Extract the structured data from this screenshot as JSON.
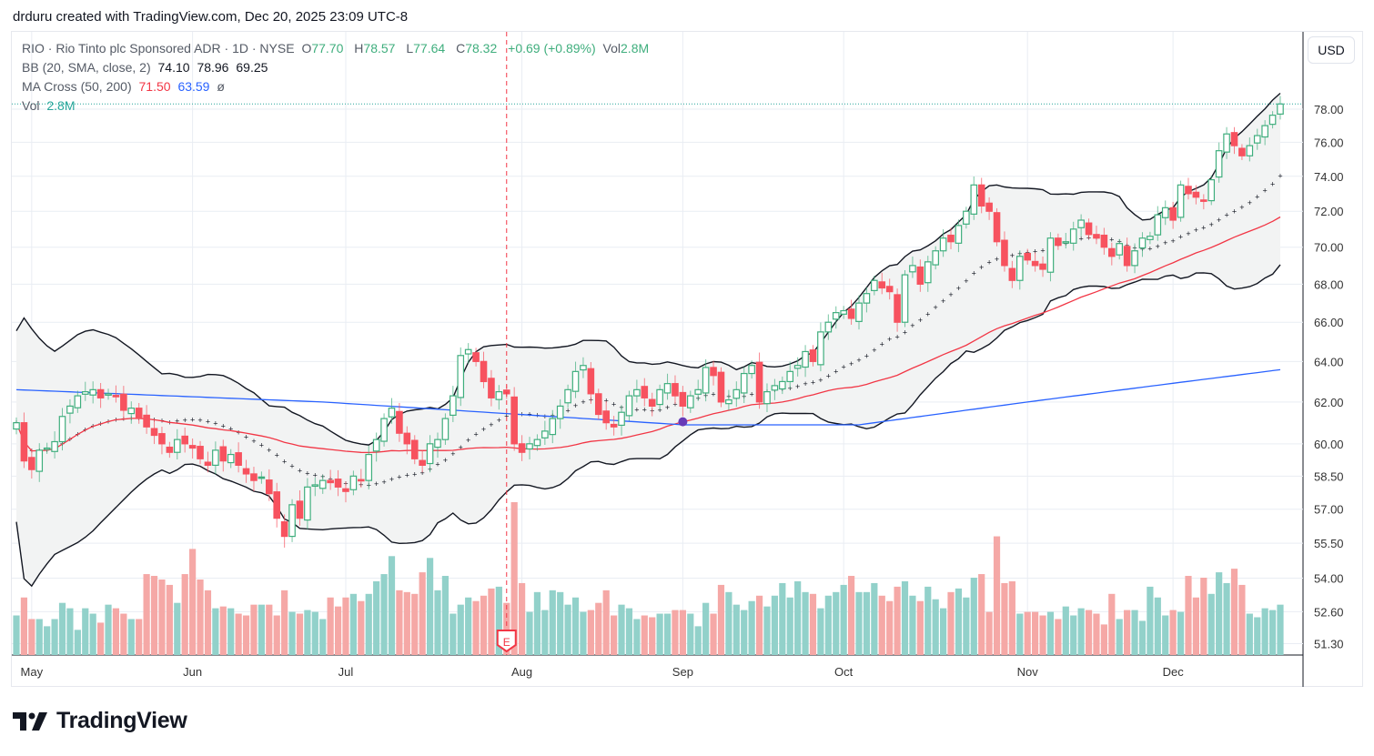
{
  "credit": "drduru created with TradingView.com, Dec 20, 2025 23:09 UTC-8",
  "legend": {
    "symbol": "RIO · Rio Tinto plc Sponsored ADR · 1D · NYSE",
    "o_label": "O",
    "o": "77.70",
    "h_label": "H",
    "h": "78.57",
    "l_label": "L",
    "l": "77.64",
    "c_label": "C",
    "c": "78.32",
    "change": "+0.69 (+0.89%)",
    "vol_label": "Vol",
    "vol": "2.8M",
    "bb_label": "BB (20, SMA, close, 2)",
    "bb_mid": "74.10",
    "bb_up": "78.96",
    "bb_low": "69.25",
    "ma_label": "MA Cross (50, 200)",
    "ma50": "71.50",
    "ma200": "63.59",
    "ma_sym": "ø",
    "vol2_label": "Vol",
    "vol2": "2.8M"
  },
  "currency": "USD",
  "brand": "TradingView",
  "colors": {
    "up": "#3fae7d",
    "down": "#f7525f",
    "vol_up": "#92d1ca",
    "vol_down": "#f5a8a6",
    "ma50": "#f23645",
    "ma200": "#2962ff",
    "cross": "#673ab7"
  },
  "chart_data": {
    "type": "candlestick",
    "title": "RIO · Rio Tinto plc Sponsored ADR · 1D · NYSE",
    "yscale": "log",
    "ylim": [
      50.8,
      79.5
    ],
    "y_ticks": [
      "78.00",
      "76.00",
      "74.00",
      "72.00",
      "70.00",
      "68.00",
      "66.00",
      "64.00",
      "62.00",
      "60.00",
      "58.50",
      "57.00",
      "55.50",
      "54.00",
      "52.60",
      "51.30"
    ],
    "x_ticks": [
      {
        "label": "May",
        "bar": 2
      },
      {
        "label": "Jun",
        "bar": 23
      },
      {
        "label": "Jul",
        "bar": 43
      },
      {
        "label": "Aug",
        "bar": 66
      },
      {
        "label": "Sep",
        "bar": 87
      },
      {
        "label": "Oct",
        "bar": 108
      },
      {
        "label": "Nov",
        "bar": 132
      },
      {
        "label": "Dec",
        "bar": 151
      }
    ],
    "close": [
      61.0,
      59.2,
      58.8,
      59.7,
      59.8,
      60.1,
      61.3,
      61.8,
      62.3,
      62.5,
      62.6,
      62.2,
      62.4,
      62.3,
      61.6,
      61.7,
      61.2,
      60.8,
      60.4,
      60.0,
      59.6,
      60.2,
      60.0,
      59.8,
      59.3,
      59.0,
      59.7,
      59.2,
      59.5,
      59.0,
      58.6,
      58.3,
      58.4,
      57.7,
      56.6,
      55.8,
      57.2,
      56.6,
      58.0,
      58.1,
      58.3,
      58.2,
      58.0,
      57.8,
      58.5,
      58.3,
      59.5,
      60.2,
      61.2,
      61.7,
      60.5,
      60.0,
      59.3,
      59.0,
      60.0,
      60.2,
      61.2,
      62.3,
      64.3,
      64.6,
      64.0,
      63.0,
      62.2,
      62.5,
      62.4,
      60.0,
      59.6,
      60.0,
      60.2,
      60.6,
      61.2,
      61.8,
      62.6,
      63.5,
      63.8,
      62.4,
      61.4,
      61.0,
      60.8,
      61.5,
      62.3,
      62.6,
      62.2,
      61.8,
      62.6,
      62.9,
      62.3,
      61.8,
      62.3,
      62.6,
      63.7,
      63.3,
      62.0,
      62.1,
      62.6,
      63.4,
      63.8,
      62.0,
      62.5,
      62.8,
      63.0,
      63.5,
      63.8,
      64.5,
      64.0,
      65.5,
      66.0,
      66.5,
      66.6,
      66.2,
      67.0,
      67.5,
      68.2,
      67.8,
      67.6,
      66.0,
      68.5,
      69.0,
      68.0,
      69.2,
      69.8,
      70.5,
      70.3,
      71.2,
      72.0,
      73.5,
      72.3,
      72.0,
      70.3,
      69.0,
      68.2,
      69.5,
      69.3,
      69.0,
      68.8,
      70.5,
      70.1,
      70.3,
      71.0,
      71.5,
      70.7,
      70.5,
      70.0,
      69.5,
      70.2,
      69.0,
      69.8,
      70.5,
      70.6,
      71.8,
      72.2,
      71.5,
      73.5,
      73.0,
      72.8,
      72.6,
      73.8,
      75.5,
      76.5,
      75.8,
      75.2,
      75.8,
      76.4,
      77.0,
      77.63,
      78.32
    ],
    "volume_millions": [
      2.2,
      3.2,
      2.0,
      2.0,
      1.6,
      2.0,
      2.9,
      2.6,
      1.4,
      2.6,
      2.3,
      1.8,
      2.8,
      2.6,
      2.3,
      2.0,
      2.0,
      4.5,
      4.4,
      4.2,
      3.9,
      2.9,
      4.5,
      5.9,
      4.2,
      3.6,
      2.6,
      2.7,
      2.6,
      2.3,
      2.2,
      2.8,
      2.8,
      2.8,
      2.2,
      3.6,
      2.4,
      2.3,
      2.5,
      2.4,
      2.0,
      3.2,
      2.7,
      3.2,
      3.4,
      3.0,
      3.4,
      4.1,
      4.5,
      5.5,
      3.6,
      3.5,
      3.4,
      4.6,
      5.4,
      3.6,
      4.4,
      2.3,
      2.8,
      3.2,
      3.0,
      3.3,
      3.7,
      3.8,
      2.9,
      8.5,
      4.0,
      2.4,
      3.5,
      2.5,
      3.6,
      3.5,
      2.8,
      3.2,
      2.4,
      2.5,
      2.9,
      3.6,
      2.2,
      2.8,
      2.6,
      2.0,
      2.2,
      2.1,
      2.3,
      2.3,
      2.5,
      2.5,
      2.3,
      1.6,
      2.9,
      2.3,
      3.9,
      3.5,
      2.8,
      2.5,
      3.0,
      3.3,
      2.7,
      3.3,
      4.0,
      3.2,
      4.1,
      3.5,
      3.4,
      2.6,
      3.3,
      3.5,
      3.9,
      4.4,
      3.5,
      3.5,
      4.0,
      3.3,
      3.0,
      3.8,
      4.1,
      3.3,
      3.0,
      3.8,
      3.1,
      2.6,
      3.5,
      3.7,
      3.2,
      4.3,
      4.5,
      2.4,
      6.6,
      4.0,
      4.1,
      2.3,
      2.4,
      2.4,
      2.2,
      2.4,
      2.0,
      2.7,
      2.2,
      2.6,
      2.5,
      2.3,
      1.7,
      3.4,
      2.0,
      2.5,
      2.5,
      1.9,
      3.8,
      3.2,
      2.2,
      2.5,
      2.4,
      4.4,
      3.2,
      4.3,
      3.4,
      4.6,
      4.0,
      4.8,
      3.9,
      2.3,
      2.1,
      2.6,
      2.5,
      2.8
    ],
    "ma200_anchors": [
      [
        0,
        62.6
      ],
      [
        40,
        62.0
      ],
      [
        87,
        60.9
      ],
      [
        110,
        60.9
      ],
      [
        132,
        62.0
      ],
      [
        165,
        63.59
      ]
    ],
    "earnings_bar": 64,
    "earnings_label": "E",
    "golden_cross_bar": 87,
    "last_price": 78.32
  }
}
